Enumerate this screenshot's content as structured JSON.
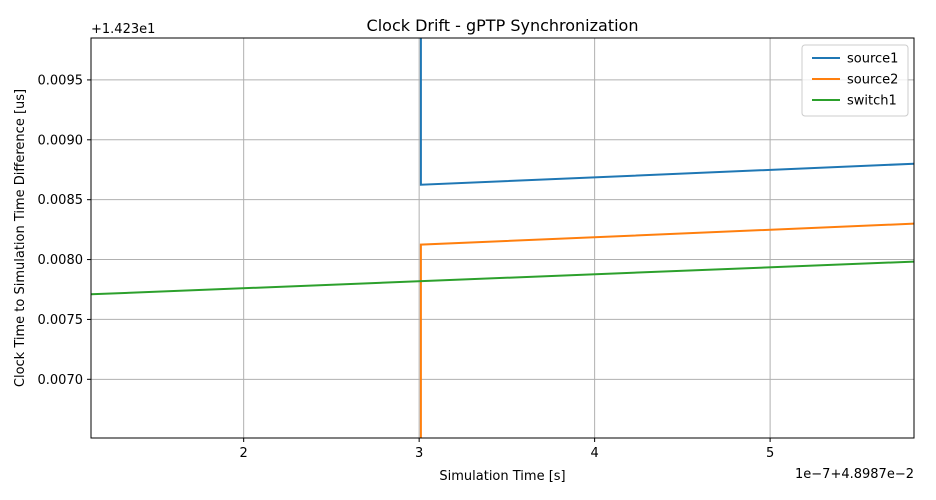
{
  "chart_data": {
    "type": "line",
    "title": "Clock Drift - gPTP Synchronization",
    "xlabel": "Simulation Time [s]",
    "ylabel": "Clock Time to Simulation Time Difference [us]",
    "x_offset_label": "1e−7+4.8987e−2",
    "y_offset_label": "+1.423e1",
    "xlim": [
      1.13,
      5.82
    ],
    "ylim": [
      0.00651,
      0.00985
    ],
    "xticks": [
      2,
      3,
      4,
      5
    ],
    "xtick_labels": [
      "2",
      "3",
      "4",
      "5"
    ],
    "yticks": [
      0.007,
      0.0075,
      0.008,
      0.0085,
      0.009,
      0.0095
    ],
    "ytick_labels": [
      "0.0070",
      "0.0075",
      "0.0080",
      "0.0085",
      "0.0090",
      "0.0095"
    ],
    "grid": true,
    "legend_position": "top-right",
    "series": [
      {
        "name": "source1",
        "color": "#1f77b4",
        "x": [
          3.01,
          3.01,
          5.82
        ],
        "y": [
          0.00985,
          0.008625,
          0.0088
        ]
      },
      {
        "name": "source2",
        "color": "#ff7f0e",
        "x": [
          3.01,
          3.01,
          5.82
        ],
        "y": [
          0.00651,
          0.008125,
          0.0083
        ]
      },
      {
        "name": "switch1",
        "color": "#2ca02c",
        "x": [
          1.13,
          5.82
        ],
        "y": [
          0.00771,
          0.007983
        ]
      }
    ]
  }
}
